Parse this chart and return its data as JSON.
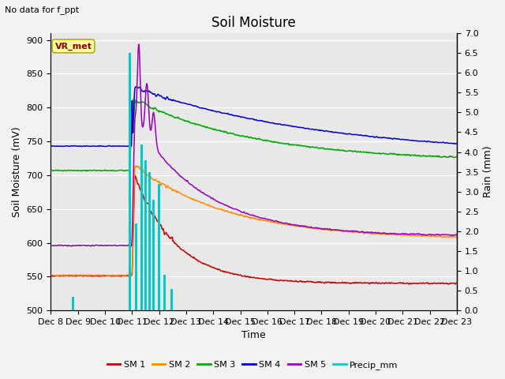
{
  "title": "Soil Moisture",
  "subtitle": "No data for f_ppt",
  "xlabel": "Time",
  "ylabel_left": "Soil Moisture (mV)",
  "ylabel_right": "Rain (mm)",
  "ylim_left": [
    500,
    910
  ],
  "ylim_right": [
    0.0,
    7.0
  ],
  "yticks_left": [
    500,
    550,
    600,
    650,
    700,
    750,
    800,
    850,
    900
  ],
  "yticks_right": [
    0.0,
    0.5,
    1.0,
    1.5,
    2.0,
    2.5,
    3.0,
    3.5,
    4.0,
    4.5,
    5.0,
    5.5,
    6.0,
    6.5,
    7.0
  ],
  "xtick_labels": [
    "Dec 8",
    "Dec 9",
    "Dec 10",
    "Dec 11",
    "Dec 12",
    "Dec 13",
    "Dec 14",
    "Dec 15",
    "Dec 16",
    "Dec 17",
    "Dec 18",
    "Dec 19",
    "Dec 20",
    "Dec 21",
    "Dec 22",
    "Dec 23"
  ],
  "vr_met_label": "VR_met",
  "vr_met_color": "#8B0000",
  "vr_met_bg": "#FFFF99",
  "legend_labels": [
    "SM 1",
    "SM 2",
    "SM 3",
    "SM 4",
    "SM 5",
    "Precip_mm"
  ],
  "sm1_color": "#CC0000",
  "sm2_color": "#FF8C00",
  "sm3_color": "#00AA00",
  "sm4_color": "#0000CC",
  "sm5_color": "#9900BB",
  "precip_color": "#00CCCC",
  "background_color": "#E8E8E8",
  "grid_color": "#FFFFFF",
  "title_fontsize": 12,
  "label_fontsize": 9,
  "tick_fontsize": 8
}
